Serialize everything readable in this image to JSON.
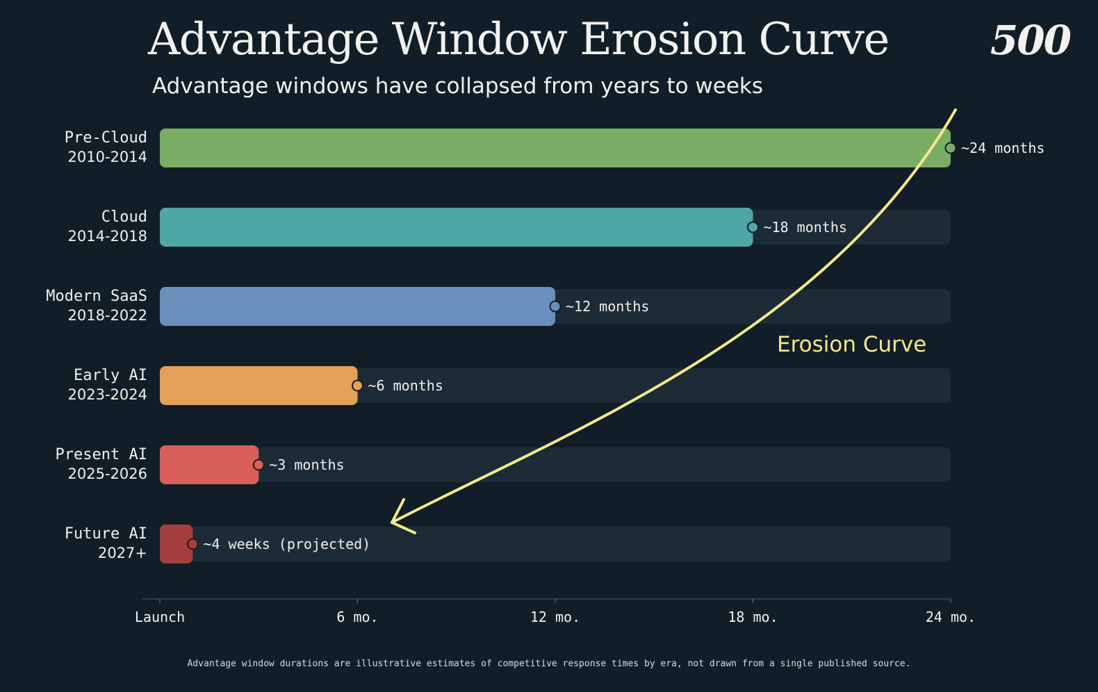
{
  "header": {
    "title": "Advantage Window Erosion Curve",
    "subtitle": "Advantage windows have collapsed from years to weeks",
    "logo": "500"
  },
  "footnote": "Advantage window durations are illustrative estimates of competitive response times by era, not drawn from a single published source.",
  "chart_data": {
    "type": "bar",
    "orientation": "horizontal",
    "categories": [
      {
        "name": "Pre-Cloud",
        "years": "2010-2014"
      },
      {
        "name": "Cloud",
        "years": "2014-2018"
      },
      {
        "name": "Modern SaaS",
        "years": "2018-2022"
      },
      {
        "name": "Early AI",
        "years": "2023-2024"
      },
      {
        "name": "Present AI",
        "years": "2025-2026"
      },
      {
        "name": "Future AI",
        "years": "2027+"
      }
    ],
    "values": [
      24,
      18,
      12,
      6,
      3,
      1
    ],
    "value_labels": [
      "~24 months",
      "~18 months",
      "~12 months",
      "~6 months",
      "~3 months",
      "~4 weeks (projected)"
    ],
    "colors": [
      "#7aad64",
      "#4fa6a6",
      "#6b8fbd",
      "#e5a058",
      "#d9605a",
      "#a53f3f"
    ],
    "track_color": "#1d2b36",
    "xlim": [
      0,
      24
    ],
    "x_ticks": [
      0,
      6,
      12,
      18,
      24
    ],
    "x_tick_labels": [
      "Launch",
      "6 mo.",
      "12 mo.",
      "18 mo.",
      "24 mo."
    ],
    "x_unit": "months",
    "annotation": {
      "label": "Erosion Curve",
      "color": "#f4e98a"
    }
  }
}
